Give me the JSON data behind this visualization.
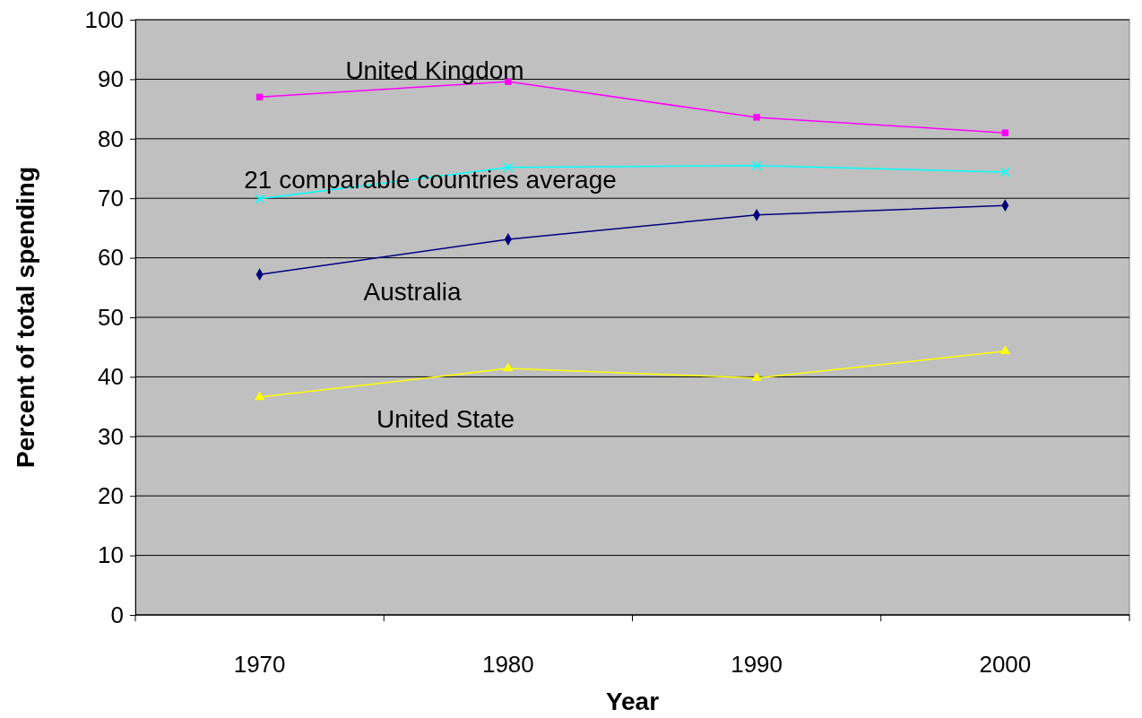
{
  "chart_data": {
    "type": "line",
    "xlabel": "Year",
    "ylabel": "Percent of total spending",
    "categories": [
      "1970",
      "1980",
      "1990",
      "2000"
    ],
    "ylim": [
      0,
      100
    ],
    "yticks": [
      0,
      10,
      20,
      30,
      40,
      50,
      60,
      70,
      80,
      90,
      100
    ],
    "grid": "y",
    "series": [
      {
        "name": "United Kingdom",
        "color": "#ff00ff",
        "marker": "square",
        "values": [
          87.0,
          89.6,
          83.6,
          81.0
        ]
      },
      {
        "name": "21 comparable countries average",
        "color": "#00ffff",
        "marker": "cross",
        "values": [
          69.9,
          75.2,
          75.5,
          74.4
        ]
      },
      {
        "name": "Australia",
        "color": "#000080",
        "marker": "diamond",
        "values": [
          57.2,
          63.1,
          67.2,
          68.8
        ]
      },
      {
        "name": "United State",
        "color": "#ffff00",
        "marker": "triangle",
        "values": [
          36.6,
          41.4,
          39.8,
          44.3
        ]
      }
    ]
  }
}
